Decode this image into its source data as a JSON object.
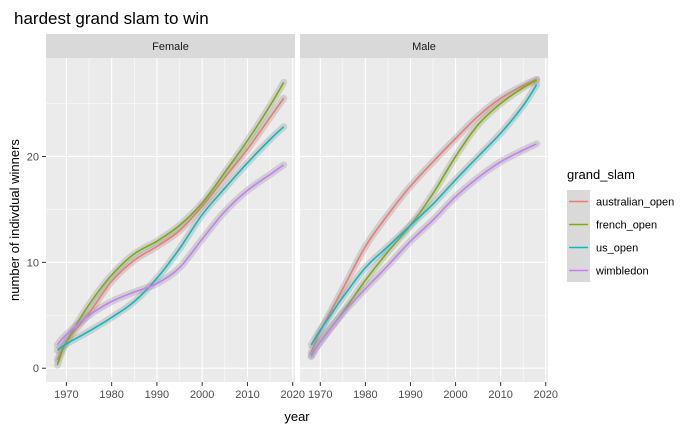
{
  "chart_data": {
    "type": "line",
    "title": "hardest grand slam to win",
    "xlabel": "year",
    "ylabel": "number of indivdual winners",
    "xlim": [
      1965.5,
      2020.5
    ],
    "ylim": [
      -1.3,
      29.3
    ],
    "x_ticks": [
      1970,
      1980,
      1990,
      2000,
      2010,
      2020
    ],
    "y_ticks": [
      0,
      10,
      20
    ],
    "legend": {
      "title": "grand_slam",
      "position": "right",
      "entries": [
        "australian_open",
        "french_open",
        "us_open",
        "wimbledon"
      ]
    },
    "colors": {
      "australian_open": "#F8766D",
      "french_open": "#7CAE00",
      "us_open": "#00BFC4",
      "wimbledon": "#C77CFF"
    },
    "facets": [
      {
        "label": "Female",
        "series": [
          {
            "name": "australian_open",
            "x": [
              1968,
              1970,
              1975,
              1980,
              1985,
              1990,
              1995,
              2000,
              2005,
              2010,
              2015,
              2018
            ],
            "y": [
              0.8,
              2.5,
              5.2,
              8.2,
              10.2,
              11.5,
              13.0,
              15.3,
              18.0,
              20.7,
              23.7,
              25.5
            ]
          },
          {
            "name": "french_open",
            "x": [
              1968,
              1970,
              1975,
              1980,
              1985,
              1990,
              1995,
              2000,
              2005,
              2010,
              2015,
              2018
            ],
            "y": [
              0.3,
              2.5,
              6.0,
              8.8,
              10.8,
              12.0,
              13.5,
              15.6,
              18.5,
              21.5,
              24.8,
              27.0
            ]
          },
          {
            "name": "us_open",
            "x": [
              1968,
              1970,
              1975,
              1980,
              1985,
              1990,
              1995,
              2000,
              2005,
              2010,
              2015,
              2018
            ],
            "y": [
              1.7,
              2.3,
              3.5,
              4.8,
              6.3,
              8.5,
              11.3,
              14.5,
              17.0,
              19.4,
              21.6,
              22.8
            ]
          },
          {
            "name": "wimbledon",
            "x": [
              1968,
              1970,
              1975,
              1980,
              1985,
              1990,
              1995,
              2000,
              2005,
              2010,
              2015,
              2018
            ],
            "y": [
              2.2,
              3.2,
              5.0,
              6.3,
              7.2,
              8.0,
              9.5,
              12.2,
              14.8,
              16.8,
              18.3,
              19.2
            ]
          }
        ]
      },
      {
        "label": "Male",
        "series": [
          {
            "name": "australian_open",
            "x": [
              1968,
              1970,
              1975,
              1980,
              1985,
              1990,
              1995,
              2000,
              2005,
              2010,
              2015,
              2018
            ],
            "y": [
              1.5,
              3.5,
              7.5,
              11.5,
              14.5,
              17.2,
              19.5,
              21.7,
              23.8,
              25.5,
              26.7,
              27.3
            ]
          },
          {
            "name": "french_open",
            "x": [
              1968,
              1970,
              1975,
              1980,
              1985,
              1990,
              1995,
              2000,
              2005,
              2010,
              2015,
              2018
            ],
            "y": [
              1.2,
              2.5,
              5.3,
              8.3,
              11.0,
              13.5,
              16.5,
              20.0,
              23.0,
              25.0,
              26.5,
              27.2
            ]
          },
          {
            "name": "us_open",
            "x": [
              1968,
              1970,
              1975,
              1980,
              1985,
              1990,
              1995,
              2000,
              2005,
              2010,
              2015,
              2018
            ],
            "y": [
              2.2,
              3.6,
              6.7,
              9.5,
              11.5,
              13.5,
              15.5,
              17.8,
              20.0,
              22.2,
              24.8,
              26.8
            ]
          },
          {
            "name": "wimbledon",
            "x": [
              1968,
              1970,
              1975,
              1980,
              1985,
              1990,
              1995,
              2000,
              2005,
              2010,
              2015,
              2018
            ],
            "y": [
              1.1,
              2.5,
              5.2,
              7.5,
              9.7,
              12.0,
              14.0,
              16.2,
              18.0,
              19.5,
              20.6,
              21.2
            ]
          }
        ]
      }
    ]
  }
}
